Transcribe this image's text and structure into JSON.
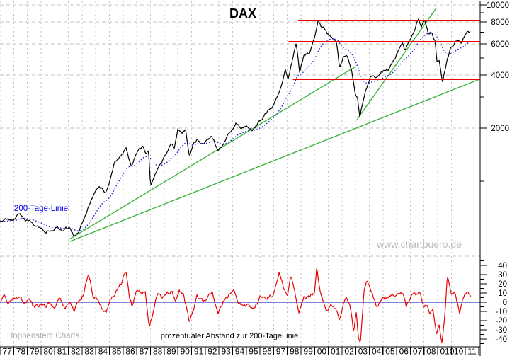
{
  "title": "DAX",
  "watermark": "www.chartbuero.de",
  "branding": "Hoppenstedt Charts",
  "labels": {
    "ma_label": "200-Tage-Linie",
    "lower_panel_label": "prozentualer Abstand zur 200-TageLinie"
  },
  "colors": {
    "price": "#000000",
    "moving_average": "#2222dd",
    "trend": "#3db53d",
    "resistance": "#ee0000",
    "pct_series": "#ee0000",
    "zero_line": "#0000bb",
    "grid": "#c3c3c3",
    "axis": "#000000",
    "watermark": "#bdbdbd",
    "branding": "#a9a9a9",
    "ma_label": "#0000ee"
  },
  "x_axis": {
    "start_year": 1977,
    "end_year": 2012,
    "year_labels": [
      "77",
      "78",
      "79",
      "80",
      "81",
      "82",
      "83",
      "84",
      "85",
      "86",
      "87",
      "88",
      "89",
      "90",
      "91",
      "92",
      "93",
      "94",
      "95",
      "96",
      "97",
      "98",
      "99",
      "00",
      "01",
      "02",
      "03",
      "04",
      "05",
      "06",
      "07",
      "08",
      "010",
      "10",
      "11"
    ]
  },
  "chart_data": {
    "type": "line",
    "title": "DAX",
    "panels": [
      {
        "name": "price",
        "y_scale": "log",
        "y_major_ticks": [
          10000,
          8000,
          6000,
          4000,
          2000
        ],
        "y_minor_ticks": [
          9000,
          7000,
          5000,
          3000,
          1000
        ],
        "grid": true,
        "series": [
          {
            "name": "DAX",
            "style": "solid",
            "points": [
              [
                1976.9,
                580
              ],
              [
                1977.3,
                610
              ],
              [
                1977.8,
                590
              ],
              [
                1978.3,
                645
              ],
              [
                1978.7,
                620
              ],
              [
                1979.2,
                575
              ],
              [
                1979.7,
                545
              ],
              [
                1980.2,
                515
              ],
              [
                1980.6,
                540
              ],
              [
                1981.1,
                560
              ],
              [
                1981.5,
                535
              ],
              [
                1982.0,
                545
              ],
              [
                1982.3,
                500
              ],
              [
                1982.7,
                530
              ],
              [
                1983.1,
                650
              ],
              [
                1983.5,
                780
              ],
              [
                1983.9,
                880
              ],
              [
                1984.3,
                900
              ],
              [
                1984.6,
                840
              ],
              [
                1984.9,
                1000
              ],
              [
                1985.3,
                1300
              ],
              [
                1985.7,
                1390
              ],
              [
                1986.1,
                1560
              ],
              [
                1986.5,
                1240
              ],
              [
                1986.9,
                1480
              ],
              [
                1987.3,
                1590
              ],
              [
                1987.55,
                1460
              ],
              [
                1987.75,
                1540
              ],
              [
                1987.9,
                960
              ],
              [
                1988.2,
                1100
              ],
              [
                1988.6,
                1260
              ],
              [
                1989.0,
                1410
              ],
              [
                1989.4,
                1680
              ],
              [
                1989.65,
                1600
              ],
              [
                1989.9,
                1960
              ],
              [
                1990.2,
                1880
              ],
              [
                1990.45,
                1960
              ],
              [
                1990.75,
                1360
              ],
              [
                1991.05,
                1630
              ],
              [
                1991.35,
                1710
              ],
              [
                1991.7,
                1610
              ],
              [
                1992.0,
                1690
              ],
              [
                1992.35,
                1770
              ],
              [
                1992.85,
                1490
              ],
              [
                1993.25,
                1620
              ],
              [
                1993.7,
                1900
              ],
              [
                1994.15,
                2170
              ],
              [
                1994.5,
                2000
              ],
              [
                1994.9,
                2060
              ],
              [
                1995.3,
                1940
              ],
              [
                1995.9,
                2210
              ],
              [
                1996.3,
                2400
              ],
              [
                1996.8,
                2620
              ],
              [
                1997.2,
                3020
              ],
              [
                1997.55,
                3720
              ],
              [
                1997.75,
                4400
              ],
              [
                1997.95,
                3920
              ],
              [
                1998.2,
                4680
              ],
              [
                1998.55,
                6160
              ],
              [
                1998.8,
                4150
              ],
              [
                1999.1,
                5060
              ],
              [
                1999.5,
                5260
              ],
              [
                1999.9,
                6620
              ],
              [
                2000.15,
                8150
              ],
              [
                2000.4,
                7350
              ],
              [
                2000.7,
                7200
              ],
              [
                2001.0,
                6620
              ],
              [
                2001.3,
                6200
              ],
              [
                2001.5,
                5900
              ],
              [
                2001.72,
                4350
              ],
              [
                2002.0,
                5200
              ],
              [
                2002.25,
                5400
              ],
              [
                2002.6,
                4300
              ],
              [
                2002.85,
                3200
              ],
              [
                2003.05,
                2900
              ],
              [
                2003.2,
                2250
              ],
              [
                2003.6,
                3260
              ],
              [
                2004.0,
                4100
              ],
              [
                2004.4,
                3950
              ],
              [
                2004.8,
                4260
              ],
              [
                2005.3,
                4400
              ],
              [
                2005.8,
                5060
              ],
              [
                2006.3,
                6120
              ],
              [
                2006.5,
                5460
              ],
              [
                2006.9,
                6460
              ],
              [
                2007.2,
                7000
              ],
              [
                2007.5,
                8300
              ],
              [
                2007.7,
                7480
              ],
              [
                2007.95,
                8200
              ],
              [
                2008.2,
                6760
              ],
              [
                2008.45,
                7060
              ],
              [
                2008.7,
                6300
              ],
              [
                2008.85,
                4700
              ],
              [
                2009.0,
                4870
              ],
              [
                2009.25,
                3680
              ],
              [
                2009.6,
                5000
              ],
              [
                2009.9,
                5800
              ],
              [
                2010.2,
                6240
              ],
              [
                2010.45,
                6120
              ],
              [
                2010.6,
                5960
              ],
              [
                2010.9,
                6900
              ],
              [
                2011.1,
                7330
              ],
              [
                2011.3,
                7160
              ]
            ]
          },
          {
            "name": "200-Tage-Linie",
            "style": "dotted",
            "derivation": "200-day moving average of DAX"
          }
        ],
        "resistance_lines": [
          {
            "level": 8150,
            "from_year": 1998.7,
            "to_year": 2012
          },
          {
            "level": 6180,
            "from_year": 1998.0,
            "to_year": 2012
          },
          {
            "level": 3770,
            "from_year": 1998.3,
            "to_year": 2012
          }
        ],
        "trend_lines": [
          {
            "from": [
              1982.0,
              470
            ],
            "to": [
              2002.9,
              4470
            ]
          },
          {
            "from": [
              1982.0,
              455
            ],
            "to": [
              2012.0,
              3800
            ]
          },
          {
            "from": [
              2003.0,
              2240
            ],
            "to": [
              2008.8,
              9600
            ]
          }
        ]
      },
      {
        "name": "percent-distance",
        "y_major_ticks": [
          40,
          30,
          20,
          10,
          0,
          -10,
          -20,
          -30,
          -40
        ],
        "y_minor_step": 5,
        "zero_line": true,
        "series": [
          {
            "name": "prozentualer Abstand zur 200-TageLinie",
            "style": "solid",
            "points": [
              [
                1976.9,
                0
              ],
              [
                1977.2,
                3
              ],
              [
                1977.5,
                -2
              ],
              [
                1977.9,
                4
              ],
              [
                1978.3,
                3
              ],
              [
                1978.7,
                -3
              ],
              [
                1979.0,
                1
              ],
              [
                1979.4,
                -8
              ],
              [
                1979.8,
                -3
              ],
              [
                1980.2,
                -6
              ],
              [
                1980.5,
                2
              ],
              [
                1980.9,
                -4
              ],
              [
                1981.2,
                4
              ],
              [
                1981.6,
                -5
              ],
              [
                1982.0,
                -2
              ],
              [
                1982.35,
                -8
              ],
              [
                1982.7,
                3
              ],
              [
                1983.0,
                10
              ],
              [
                1983.35,
                28
              ],
              [
                1983.7,
                8
              ],
              [
                1984.0,
                4
              ],
              [
                1984.35,
                -6
              ],
              [
                1984.65,
                -10
              ],
              [
                1985.0,
                5
              ],
              [
                1985.4,
                12
              ],
              [
                1985.8,
                22
              ],
              [
                1986.1,
                37
              ],
              [
                1986.35,
                6
              ],
              [
                1986.55,
                -5
              ],
              [
                1986.85,
                12
              ],
              [
                1987.2,
                10
              ],
              [
                1987.5,
                14
              ],
              [
                1987.8,
                -28
              ],
              [
                1988.05,
                -17
              ],
              [
                1988.3,
                2
              ],
              [
                1988.6,
                10
              ],
              [
                1989.0,
                6
              ],
              [
                1989.4,
                13
              ],
              [
                1989.75,
                3
              ],
              [
                1990.0,
                13
              ],
              [
                1990.3,
                10
              ],
              [
                1990.75,
                -22
              ],
              [
                1991.05,
                -8
              ],
              [
                1991.3,
                7
              ],
              [
                1991.7,
                1
              ],
              [
                1992.0,
                4
              ],
              [
                1992.4,
                9
              ],
              [
                1992.85,
                -13
              ],
              [
                1993.2,
                2
              ],
              [
                1993.6,
                9
              ],
              [
                1994.0,
                12
              ],
              [
                1994.35,
                -4
              ],
              [
                1994.7,
                -2
              ],
              [
                1995.1,
                -5
              ],
              [
                1995.45,
                -7
              ],
              [
                1995.9,
                4
              ],
              [
                1996.3,
                5
              ],
              [
                1996.8,
                7
              ],
              [
                1997.0,
                15
              ],
              [
                1997.3,
                35
              ],
              [
                1997.65,
                15
              ],
              [
                1997.9,
                8
              ],
              [
                1998.15,
                28
              ],
              [
                1998.45,
                12
              ],
              [
                1998.75,
                -14
              ],
              [
                1999.1,
                4
              ],
              [
                1999.5,
                7
              ],
              [
                1999.9,
                12
              ],
              [
                2000.05,
                36
              ],
              [
                2000.3,
                14
              ],
              [
                2000.6,
                -2
              ],
              [
                2000.85,
                -11
              ],
              [
                2001.1,
                -4
              ],
              [
                2001.4,
                -8
              ],
              [
                2001.72,
                -22
              ],
              [
                2002.0,
                0
              ],
              [
                2002.3,
                3
              ],
              [
                2002.55,
                -10
              ],
              [
                2002.75,
                -33
              ],
              [
                2002.95,
                -12
              ],
              [
                2003.1,
                -39
              ],
              [
                2003.25,
                -42
              ],
              [
                2003.5,
                12
              ],
              [
                2003.75,
                23
              ],
              [
                2004.05,
                12
              ],
              [
                2004.4,
                -3
              ],
              [
                2004.8,
                3
              ],
              [
                2005.2,
                4
              ],
              [
                2005.7,
                7
              ],
              [
                2006.1,
                11
              ],
              [
                2006.4,
                6
              ],
              [
                2006.6,
                -8
              ],
              [
                2006.9,
                6
              ],
              [
                2007.3,
                8
              ],
              [
                2007.6,
                11
              ],
              [
                2007.85,
                -4
              ],
              [
                2008.1,
                -2
              ],
              [
                2008.3,
                -10
              ],
              [
                2008.55,
                -6
              ],
              [
                2008.8,
                -34
              ],
              [
                2009.0,
                -26
              ],
              [
                2009.2,
                -44
              ],
              [
                2009.45,
                -8
              ],
              [
                2009.6,
                30
              ],
              [
                2009.9,
                10
              ],
              [
                2010.2,
                9
              ],
              [
                2010.5,
                -9
              ],
              [
                2010.8,
                7
              ],
              [
                2011.0,
                12
              ],
              [
                2011.2,
                8
              ],
              [
                2011.35,
                8
              ]
            ]
          }
        ]
      }
    ]
  }
}
